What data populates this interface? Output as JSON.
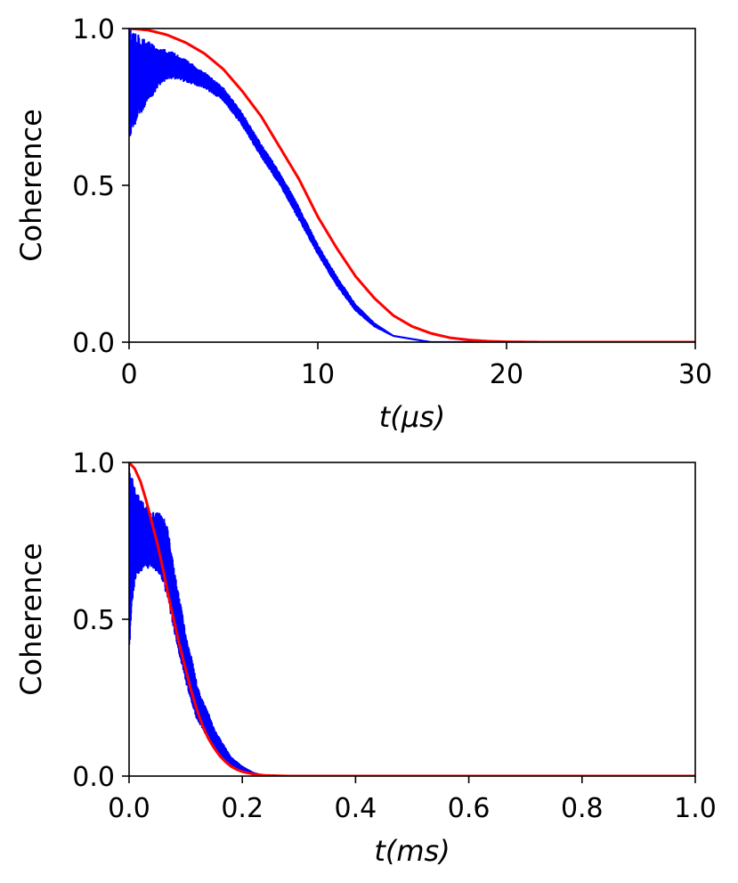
{
  "chart_data": [
    {
      "type": "line",
      "title": "",
      "ylabel": "Coherence",
      "xlabel": {
        "var": "t",
        "unit": "(μs)"
      },
      "xlim": [
        0,
        30
      ],
      "ylim": [
        0,
        1
      ],
      "x_ticks": [
        "0",
        "10",
        "20",
        "30"
      ],
      "x_tick_values": [
        0,
        10,
        20,
        30
      ],
      "y_ticks": [
        "0.0",
        "0.5",
        "1.0"
      ],
      "y_tick_values": [
        0,
        0.5,
        1
      ],
      "grid": false,
      "series": [
        {
          "color": "#0000ff",
          "style": "noisy-envelope",
          "x": [
            0,
            0.5,
            1,
            1.5,
            2,
            2.5,
            3,
            4,
            5,
            6,
            7,
            8,
            9,
            10,
            11,
            12,
            13,
            14,
            15,
            16,
            17
          ],
          "upper": [
            1.0,
            0.99,
            0.96,
            0.94,
            0.93,
            0.92,
            0.9,
            0.86,
            0.81,
            0.73,
            0.63,
            0.54,
            0.43,
            0.31,
            0.21,
            0.12,
            0.06,
            0.02,
            0.01,
            0.0,
            0.0
          ],
          "lower": [
            0.65,
            0.72,
            0.76,
            0.81,
            0.84,
            0.84,
            0.83,
            0.81,
            0.77,
            0.69,
            0.59,
            0.5,
            0.39,
            0.28,
            0.18,
            0.1,
            0.05,
            0.02,
            0.01,
            0.0,
            0.0
          ]
        },
        {
          "color": "#ff0000",
          "style": "smooth",
          "x": [
            0,
            1,
            2,
            3,
            4,
            5,
            6,
            7,
            8,
            9,
            10,
            11,
            12,
            13,
            14,
            15,
            16,
            17,
            18,
            19,
            20,
            22,
            25,
            30
          ],
          "values": [
            1.0,
            0.995,
            0.98,
            0.955,
            0.92,
            0.87,
            0.8,
            0.72,
            0.62,
            0.52,
            0.4,
            0.3,
            0.21,
            0.14,
            0.085,
            0.05,
            0.028,
            0.014,
            0.007,
            0.003,
            0.001,
            0.0,
            0.0,
            0.0
          ]
        }
      ]
    },
    {
      "type": "line",
      "title": "",
      "ylabel": "Coherence",
      "xlabel": {
        "var": "t",
        "unit": "(ms)"
      },
      "xlim": [
        0,
        1
      ],
      "ylim": [
        0,
        1
      ],
      "x_ticks": [
        "0.0",
        "0.2",
        "0.4",
        "0.6",
        "0.8",
        "1.0"
      ],
      "x_tick_values": [
        0,
        0.2,
        0.4,
        0.6,
        0.8,
        1.0
      ],
      "y_ticks": [
        "0.0",
        "0.5",
        "1.0"
      ],
      "y_tick_values": [
        0,
        0.5,
        1
      ],
      "grid": false,
      "series": [
        {
          "color": "#0000ff",
          "style": "noisy-envelope",
          "x": [
            0,
            0.005,
            0.01,
            0.02,
            0.03,
            0.04,
            0.05,
            0.06,
            0.07,
            0.08,
            0.09,
            0.1,
            0.11,
            0.12,
            0.13,
            0.14,
            0.15,
            0.16,
            0.17,
            0.18,
            0.2,
            0.22,
            0.24
          ],
          "upper": [
            1.0,
            0.97,
            0.92,
            0.88,
            0.86,
            0.84,
            0.84,
            0.83,
            0.78,
            0.65,
            0.56,
            0.45,
            0.38,
            0.29,
            0.24,
            0.2,
            0.15,
            0.12,
            0.09,
            0.06,
            0.03,
            0.01,
            0.0
          ],
          "lower": [
            0.38,
            0.55,
            0.62,
            0.65,
            0.66,
            0.67,
            0.65,
            0.62,
            0.55,
            0.45,
            0.38,
            0.3,
            0.24,
            0.18,
            0.15,
            0.12,
            0.09,
            0.07,
            0.05,
            0.03,
            0.015,
            0.005,
            0.0
          ]
        },
        {
          "color": "#ff0000",
          "style": "smooth",
          "x": [
            0,
            0.01,
            0.02,
            0.03,
            0.04,
            0.05,
            0.06,
            0.07,
            0.08,
            0.09,
            0.1,
            0.11,
            0.12,
            0.13,
            0.14,
            0.15,
            0.16,
            0.17,
            0.18,
            0.19,
            0.2,
            0.22,
            0.24,
            0.26,
            0.28,
            0.3,
            0.35,
            0.4,
            1.0
          ],
          "values": [
            1.0,
            0.98,
            0.94,
            0.88,
            0.81,
            0.74,
            0.66,
            0.57,
            0.49,
            0.41,
            0.34,
            0.27,
            0.21,
            0.16,
            0.12,
            0.09,
            0.065,
            0.046,
            0.031,
            0.021,
            0.014,
            0.006,
            0.002,
            0.001,
            0.0,
            0.0,
            0.0,
            0.0,
            0.0
          ]
        }
      ]
    }
  ]
}
